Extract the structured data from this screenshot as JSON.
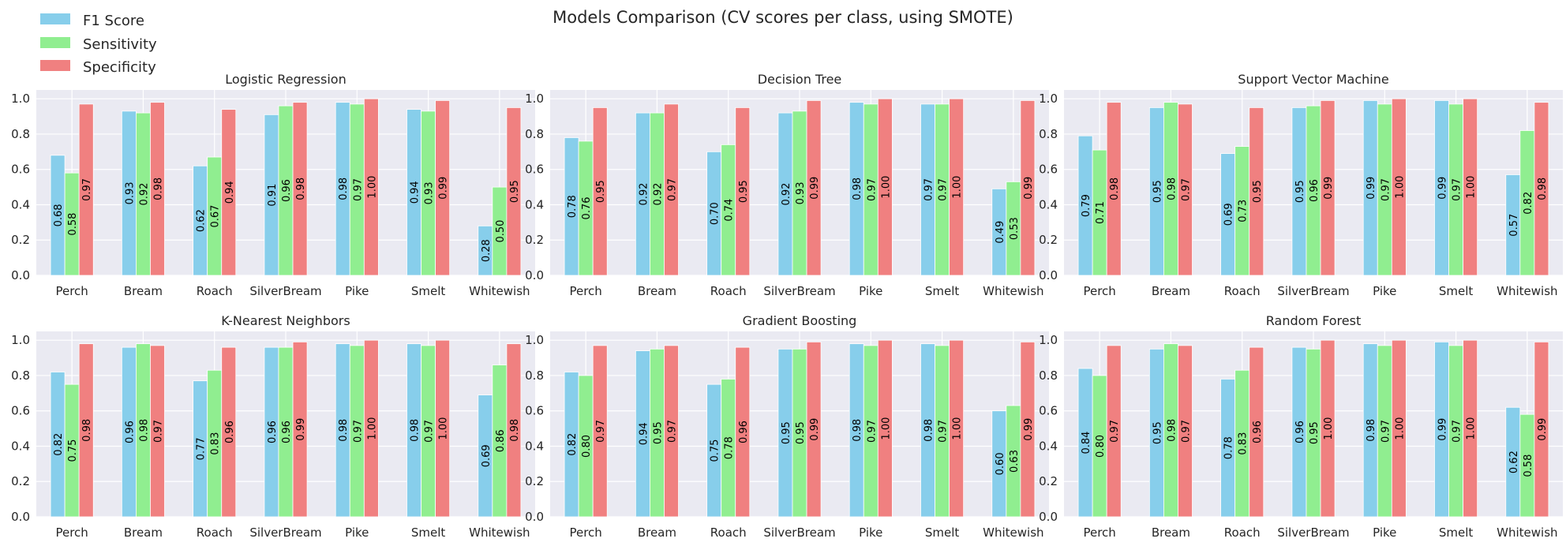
{
  "title": "Models Comparison (CV scores per class, using SMOTE)",
  "legend": [
    {
      "label": "F1 Score",
      "color": "#87CEEB"
    },
    {
      "label": "Sensitivity",
      "color": "#90EE90"
    },
    {
      "label": "Specificity",
      "color": "#F08080"
    }
  ],
  "style": {
    "panel_bg": "#EAEAF2",
    "grid": "#FFFFFF",
    "bar_edge": "#FFFFFF"
  },
  "chart_data": [
    {
      "type": "bar",
      "title": "Logistic Regression",
      "categories": [
        "Perch",
        "Bream",
        "Roach",
        "SilverBream",
        "Pike",
        "Smelt",
        "Whitewish"
      ],
      "ylim": [
        0,
        1.05
      ],
      "yticks": [
        "0.0",
        "0.2",
        "0.4",
        "0.6",
        "0.8",
        "1.0"
      ],
      "grid": true,
      "series": [
        {
          "name": "F1 Score",
          "values": [
            0.68,
            0.93,
            0.62,
            0.91,
            0.98,
            0.94,
            0.28
          ],
          "labels": [
            "0.68",
            "0.93",
            "0.62",
            "0.91",
            "0.98",
            "0.94",
            "0.28"
          ]
        },
        {
          "name": "Sensitivity",
          "values": [
            0.58,
            0.92,
            0.67,
            0.96,
            0.97,
            0.93,
            0.5
          ],
          "labels": [
            "0.58",
            "0.92",
            "0.67",
            "0.96",
            "0.97",
            "0.93",
            "0.50"
          ]
        },
        {
          "name": "Specificity",
          "values": [
            0.97,
            0.98,
            0.94,
            0.98,
            1.0,
            0.99,
            0.95
          ],
          "labels": [
            "0.97",
            "0.98",
            "0.94",
            "0.98",
            "1.00",
            "0.99",
            "0.95"
          ]
        }
      ]
    },
    {
      "type": "bar",
      "title": "Decision Tree",
      "categories": [
        "Perch",
        "Bream",
        "Roach",
        "SilverBream",
        "Pike",
        "Smelt",
        "Whitewish"
      ],
      "ylim": [
        0,
        1.05
      ],
      "yticks": [
        "0.0",
        "0.2",
        "0.4",
        "0.6",
        "0.8",
        "1.0"
      ],
      "grid": true,
      "series": [
        {
          "name": "F1 Score",
          "values": [
            0.78,
            0.92,
            0.7,
            0.92,
            0.98,
            0.97,
            0.49
          ],
          "labels": [
            "0.78",
            "0.92",
            "0.70",
            "0.92",
            "0.98",
            "0.97",
            "0.49"
          ]
        },
        {
          "name": "Sensitivity",
          "values": [
            0.76,
            0.92,
            0.74,
            0.93,
            0.97,
            0.97,
            0.53
          ],
          "labels": [
            "0.76",
            "0.92",
            "0.74",
            "0.93",
            "0.97",
            "0.97",
            "0.53"
          ]
        },
        {
          "name": "Specificity",
          "values": [
            0.95,
            0.97,
            0.95,
            0.99,
            1.0,
            1.0,
            0.99
          ],
          "labels": [
            "0.95",
            "0.97",
            "0.95",
            "0.99",
            "1.00",
            "1.00",
            "0.99"
          ]
        }
      ]
    },
    {
      "type": "bar",
      "title": "Support Vector Machine",
      "categories": [
        "Perch",
        "Bream",
        "Roach",
        "SilverBream",
        "Pike",
        "Smelt",
        "Whitewish"
      ],
      "ylim": [
        0,
        1.05
      ],
      "yticks": [
        "0.0",
        "0.2",
        "0.4",
        "0.6",
        "0.8",
        "1.0"
      ],
      "grid": true,
      "series": [
        {
          "name": "F1 Score",
          "values": [
            0.79,
            0.95,
            0.69,
            0.95,
            0.99,
            0.99,
            0.57
          ],
          "labels": [
            "0.79",
            "0.95",
            "0.69",
            "0.95",
            "0.99",
            "0.99",
            "0.57"
          ]
        },
        {
          "name": "Sensitivity",
          "values": [
            0.71,
            0.98,
            0.73,
            0.96,
            0.97,
            0.97,
            0.82
          ],
          "labels": [
            "0.71",
            "0.98",
            "0.73",
            "0.96",
            "0.97",
            "0.97",
            "0.82"
          ]
        },
        {
          "name": "Specificity",
          "values": [
            0.98,
            0.97,
            0.95,
            0.99,
            1.0,
            1.0,
            0.98
          ],
          "labels": [
            "0.98",
            "0.97",
            "0.95",
            "0.99",
            "1.00",
            "1.00",
            "0.98"
          ]
        }
      ]
    },
    {
      "type": "bar",
      "title": "K-Nearest Neighbors",
      "categories": [
        "Perch",
        "Bream",
        "Roach",
        "SilverBream",
        "Pike",
        "Smelt",
        "Whitewish"
      ],
      "ylim": [
        0,
        1.05
      ],
      "yticks": [
        "0.0",
        "0.2",
        "0.4",
        "0.6",
        "0.8",
        "1.0"
      ],
      "grid": true,
      "series": [
        {
          "name": "F1 Score",
          "values": [
            0.82,
            0.96,
            0.77,
            0.96,
            0.98,
            0.98,
            0.69
          ],
          "labels": [
            "0.82",
            "0.96",
            "0.77",
            "0.96",
            "0.98",
            "0.98",
            "0.69"
          ]
        },
        {
          "name": "Sensitivity",
          "values": [
            0.75,
            0.98,
            0.83,
            0.96,
            0.97,
            0.97,
            0.86
          ],
          "labels": [
            "0.75",
            "0.98",
            "0.83",
            "0.96",
            "0.97",
            "0.97",
            "0.86"
          ]
        },
        {
          "name": "Specificity",
          "values": [
            0.98,
            0.97,
            0.96,
            0.99,
            1.0,
            1.0,
            0.98
          ],
          "labels": [
            "0.98",
            "0.97",
            "0.96",
            "0.99",
            "1.00",
            "1.00",
            "0.98"
          ]
        }
      ]
    },
    {
      "type": "bar",
      "title": "Gradient Boosting",
      "categories": [
        "Perch",
        "Bream",
        "Roach",
        "SilverBream",
        "Pike",
        "Smelt",
        "Whitewish"
      ],
      "ylim": [
        0,
        1.05
      ],
      "yticks": [
        "0.0",
        "0.2",
        "0.4",
        "0.6",
        "0.8",
        "1.0"
      ],
      "grid": true,
      "series": [
        {
          "name": "F1 Score",
          "values": [
            0.82,
            0.94,
            0.75,
            0.95,
            0.98,
            0.98,
            0.6
          ],
          "labels": [
            "0.82",
            "0.94",
            "0.75",
            "0.95",
            "0.98",
            "0.98",
            "0.60"
          ]
        },
        {
          "name": "Sensitivity",
          "values": [
            0.8,
            0.95,
            0.78,
            0.95,
            0.97,
            0.97,
            0.63
          ],
          "labels": [
            "0.80",
            "0.95",
            "0.78",
            "0.95",
            "0.97",
            "0.97",
            "0.63"
          ]
        },
        {
          "name": "Specificity",
          "values": [
            0.97,
            0.97,
            0.96,
            0.99,
            1.0,
            1.0,
            0.99
          ],
          "labels": [
            "0.97",
            "0.97",
            "0.96",
            "0.99",
            "1.00",
            "1.00",
            "0.99"
          ]
        }
      ]
    },
    {
      "type": "bar",
      "title": "Random Forest",
      "categories": [
        "Perch",
        "Bream",
        "Roach",
        "SilverBream",
        "Pike",
        "Smelt",
        "Whitewish"
      ],
      "ylim": [
        0,
        1.05
      ],
      "yticks": [
        "0.0",
        "0.2",
        "0.4",
        "0.6",
        "0.8",
        "1.0"
      ],
      "grid": true,
      "series": [
        {
          "name": "F1 Score",
          "values": [
            0.84,
            0.95,
            0.78,
            0.96,
            0.98,
            0.99,
            0.62
          ],
          "labels": [
            "0.84",
            "0.95",
            "0.78",
            "0.96",
            "0.98",
            "0.99",
            "0.62"
          ]
        },
        {
          "name": "Sensitivity",
          "values": [
            0.8,
            0.98,
            0.83,
            0.95,
            0.97,
            0.97,
            0.58
          ],
          "labels": [
            "0.80",
            "0.98",
            "0.83",
            "0.95",
            "0.97",
            "0.97",
            "0.58"
          ]
        },
        {
          "name": "Specificity",
          "values": [
            0.97,
            0.97,
            0.96,
            1.0,
            1.0,
            1.0,
            0.99
          ],
          "labels": [
            "0.97",
            "0.97",
            "0.96",
            "1.00",
            "1.00",
            "1.00",
            "0.99"
          ]
        }
      ]
    }
  ]
}
